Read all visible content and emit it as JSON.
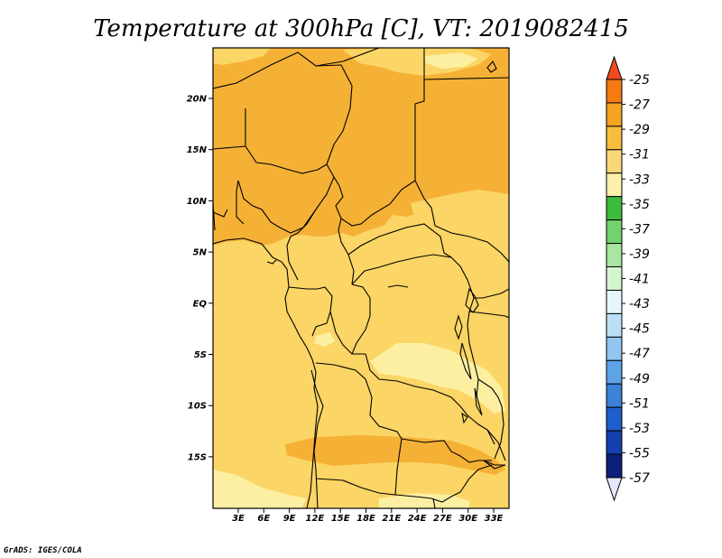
{
  "title": "Temperature at 300hPa [C], VT: 2019082415",
  "credit": "GrADS: IGES/COLA",
  "map": {
    "field": "Temperature at 300hPa",
    "units": "C",
    "lat_ticks": [
      "20N",
      "15N",
      "10N",
      "5N",
      "EQ",
      "5S",
      "10S",
      "15S"
    ],
    "lon_ticks": [
      "3E",
      "6E",
      "9E",
      "12E",
      "15E",
      "18E",
      "21E",
      "24E",
      "27E",
      "30E",
      "33E"
    ],
    "fill_regions": [
      {
        "name": "sahel-band",
        "range": "-31 to -29",
        "color": "#f5b136"
      },
      {
        "name": "central-africa",
        "range": "-33 to -31",
        "color": "#fbd565"
      },
      {
        "name": "cool-pocket-east",
        "range": "-35 to -33",
        "color": "#fdefa2"
      },
      {
        "name": "southern-warm-band",
        "range": "-31 to -29",
        "color": "#f5b136"
      }
    ]
  },
  "colorbar": {
    "labels": [
      "-25",
      "-27",
      "-29",
      "-31",
      "-33",
      "-35",
      "-37",
      "-39",
      "-41",
      "-43",
      "-45",
      "-47",
      "-49",
      "-51",
      "-53",
      "-55",
      "-57"
    ],
    "colors": [
      "#f04a1e",
      "#f57a12",
      "#f5a323",
      "#f8bd3c",
      "#fcd77a",
      "#fdf0a8",
      "#3cbc3a",
      "#73d36c",
      "#a8e5a0",
      "#d4f5d0",
      "#e4f6fb",
      "#bcdff5",
      "#92c5f0",
      "#5da3e8",
      "#3b82d8",
      "#1e5ecb",
      "#153fae",
      "#0b1f7a",
      "#e6e6fa"
    ]
  }
}
